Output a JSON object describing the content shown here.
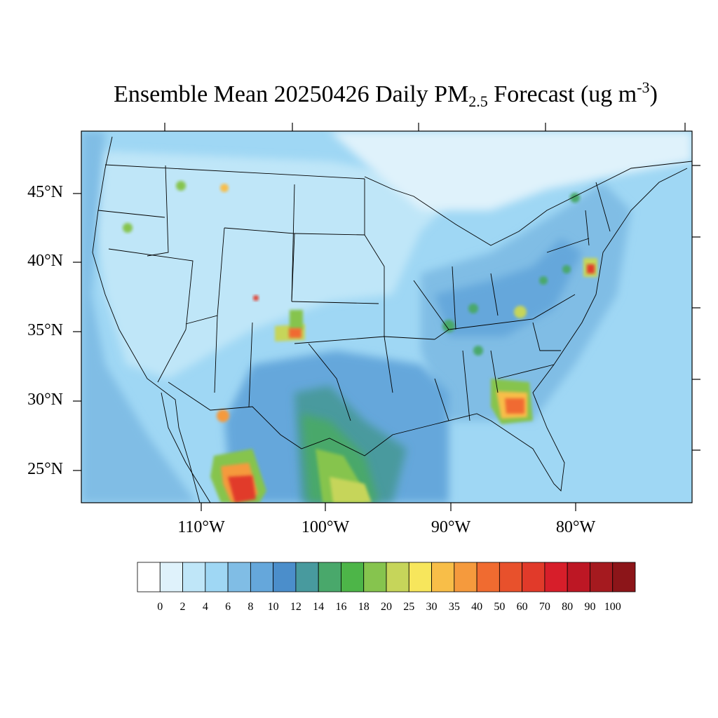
{
  "title": {
    "main": "Ensemble Mean 20250426 Daily PM",
    "subscript": "2.5",
    "rest": " Forecast (ug m",
    "superscript": "-3",
    "close": ")"
  },
  "map": {
    "lat_labels": [
      "45°N",
      "40°N",
      "35°N",
      "30°N",
      "25°N"
    ],
    "lon_labels": [
      "110°W",
      "100°W",
      "90°W",
      "80°W"
    ]
  },
  "colorbar": {
    "labels": [
      "0",
      "2",
      "4",
      "6",
      "8",
      "10",
      "12",
      "14",
      "16",
      "18",
      "20",
      "25",
      "30",
      "35",
      "40",
      "50",
      "60",
      "70",
      "80",
      "90",
      "100"
    ],
    "colors": [
      "#ffffff",
      "#dff2fb",
      "#bfe6f8",
      "#9fd7f4",
      "#80bde5",
      "#65a7db",
      "#4b8ecb",
      "#489a9e",
      "#49a86b",
      "#4db548",
      "#86c44e",
      "#c6d55a",
      "#f7e65c",
      "#f8be48",
      "#f59a3d",
      "#f06b30",
      "#e8512c",
      "#e13a2a",
      "#d71e2a",
      "#bd1724",
      "#a51a1f",
      "#8c1519"
    ]
  }
}
